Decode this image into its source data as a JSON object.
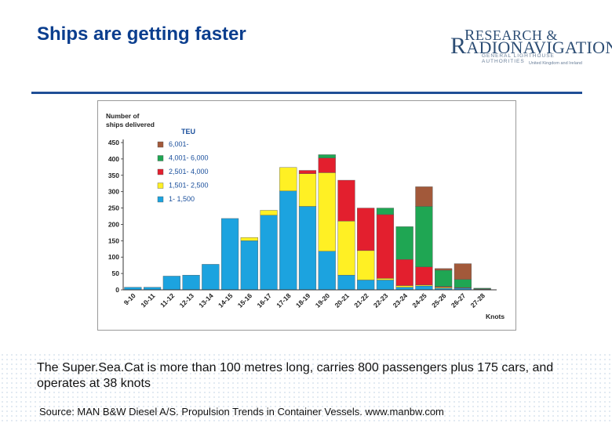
{
  "slide": {
    "title": "Ships are getting faster",
    "caption": "The Super.Sea.Cat is more than 100 metres long, carries 800 passengers plus 175 cars, and operates at 38 knots",
    "source": "Source: MAN B&W Diesel A/S.  Propulsion Trends in Container Vessels. www.manbw.com"
  },
  "logo": {
    "line1": "ESEARCH &",
    "line1_initial": "R",
    "line2_initial": "R",
    "line2": "ADIONAVIGATION",
    "line3": "GENERAL LIGHTHOUSE AUTHORITIES",
    "line4": "United Kingdom and Ireland",
    "color": "#2c4d74"
  },
  "chart_data": {
    "type": "bar",
    "stacked": true,
    "ylabel": "Number of ships delivered",
    "xlabel": "Knots",
    "legend_title": "TEU",
    "legend_position": "top-left",
    "ylim": [
      0,
      450
    ],
    "yticks": [
      0,
      50,
      100,
      150,
      200,
      250,
      300,
      350,
      400,
      450
    ],
    "grid": false,
    "categories": [
      "9-10",
      "10-11",
      "11-12",
      "12-13",
      "13-14",
      "14-15",
      "15-16",
      "16-17",
      "17-18",
      "18-19",
      "19-20",
      "20-21",
      "21-22",
      "22-23",
      "23-24",
      "24-25",
      "25-26",
      "26-27",
      "27-28"
    ],
    "series": [
      {
        "name": "1- 1,500",
        "color": "#1ca3df",
        "values": [
          8,
          8,
          42,
          45,
          78,
          218,
          150,
          228,
          302,
          255,
          118,
          45,
          30,
          30,
          8,
          12,
          5,
          5,
          2
        ]
      },
      {
        "name": "1,501- 2,500",
        "color": "#fff024",
        "values": [
          0,
          0,
          0,
          0,
          0,
          0,
          10,
          15,
          72,
          100,
          240,
          165,
          90,
          5,
          5,
          3,
          3,
          0,
          0
        ]
      },
      {
        "name": "2,501- 4,000",
        "color": "#e31f2e",
        "values": [
          0,
          0,
          0,
          0,
          0,
          0,
          0,
          0,
          0,
          10,
          45,
          125,
          130,
          195,
          80,
          55,
          2,
          2,
          1
        ]
      },
      {
        "name": "4,001- 6,000",
        "color": "#1fa653",
        "values": [
          0,
          0,
          0,
          0,
          0,
          0,
          0,
          0,
          0,
          0,
          10,
          0,
          0,
          20,
          100,
          185,
          50,
          25,
          2
        ]
      },
      {
        "name": "6,001-",
        "color": "#a2593a",
        "values": [
          0,
          0,
          0,
          0,
          0,
          0,
          0,
          0,
          0,
          0,
          0,
          0,
          0,
          0,
          0,
          60,
          5,
          48,
          0
        ]
      }
    ]
  }
}
